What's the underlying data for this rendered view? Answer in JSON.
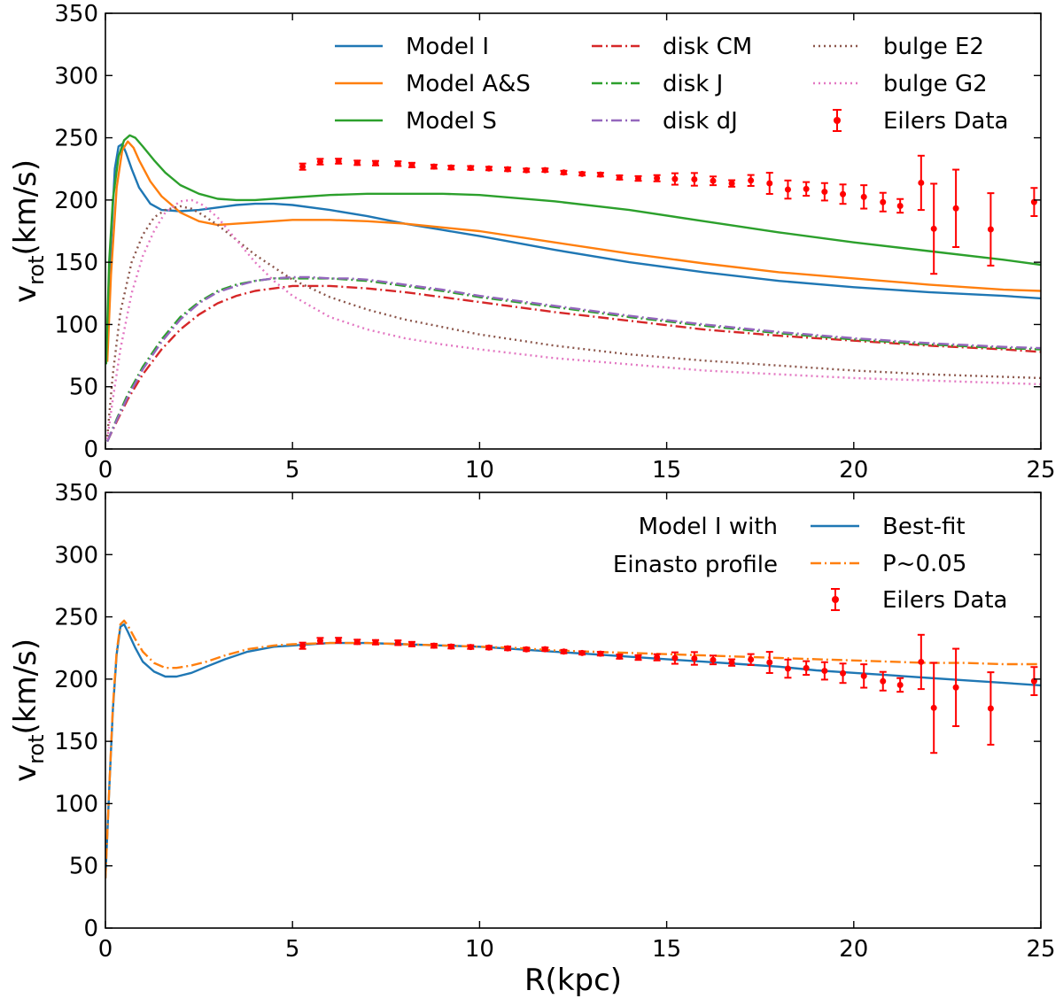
{
  "colors": {
    "blue": "#1f77b4",
    "orange": "#ff7f0e",
    "green": "#2ca02c",
    "red": "#d62728",
    "purple": "#9467bd",
    "brown": "#8c564b",
    "pink": "#e377c2",
    "data": "#ff0000"
  },
  "shared": {
    "xlabel": "R(kpc)",
    "ylabel_main": "v",
    "ylabel_sub": "rot",
    "ylabel_tail": "(km/s)",
    "xticks": [
      0,
      5,
      10,
      15,
      20,
      25
    ],
    "yticks": [
      0,
      50,
      100,
      150,
      200,
      250,
      300,
      350
    ]
  },
  "top_legend": {
    "model_i": "Model I",
    "model_as": "Model A&S",
    "model_s": "Model S",
    "disk_cm": "disk CM",
    "disk_j": "disk J",
    "disk_dj": "disk dJ",
    "bulge_e2": "bulge E2",
    "bulge_g2": "bulge G2",
    "eilers": "Eilers Data"
  },
  "bottom_legend": {
    "note_line1": "Model I with",
    "note_line2": "Einasto profile",
    "best_fit": "Best-fit",
    "p005": "P~0.05",
    "eilers": "Eilers Data"
  },
  "chart_data": [
    {
      "type": "line",
      "panel": "top",
      "title": "",
      "xlabel": "",
      "ylabel": "v_rot(km/s)",
      "xlim": [
        0,
        25
      ],
      "ylim": [
        0,
        350
      ],
      "series": [
        {
          "name": "Model I",
          "color": "blue",
          "style": "solid",
          "x": [
            0.05,
            0.15,
            0.25,
            0.35,
            0.45,
            0.55,
            0.7,
            0.9,
            1.2,
            1.5,
            2.0,
            2.5,
            3.0,
            3.5,
            4.0,
            4.5,
            5,
            6,
            7,
            8,
            9,
            10,
            12,
            14,
            16,
            18,
            20,
            22,
            24,
            25
          ],
          "y": [
            80,
            165,
            225,
            243,
            245,
            238,
            225,
            210,
            197,
            192,
            191,
            192,
            194,
            196,
            197,
            197,
            196,
            192,
            187,
            181,
            176,
            171,
            160,
            150,
            142,
            135,
            130,
            126,
            123,
            121
          ]
        },
        {
          "name": "Model A&S",
          "color": "orange",
          "style": "solid",
          "x": [
            0.05,
            0.15,
            0.3,
            0.45,
            0.6,
            0.75,
            0.9,
            1.2,
            1.5,
            2.0,
            2.5,
            3.0,
            3.5,
            4,
            5,
            6,
            7,
            8,
            9,
            10,
            12,
            14,
            16,
            18,
            20,
            22,
            24,
            25
          ],
          "y": [
            70,
            140,
            210,
            240,
            247,
            242,
            232,
            215,
            203,
            190,
            183,
            180,
            181,
            182,
            184,
            184,
            183,
            181,
            178,
            175,
            166,
            157,
            149,
            142,
            137,
            132,
            128,
            127
          ]
        },
        {
          "name": "Model S",
          "color": "green",
          "style": "solid",
          "x": [
            0.02,
            0.1,
            0.2,
            0.35,
            0.5,
            0.65,
            0.8,
            1.0,
            1.3,
            1.6,
            2.0,
            2.5,
            3.0,
            3.5,
            4,
            5,
            6,
            7,
            8,
            9,
            10,
            12,
            14,
            16,
            18,
            20,
            22,
            24,
            25
          ],
          "y": [
            68,
            150,
            200,
            235,
            248,
            252,
            250,
            243,
            232,
            222,
            212,
            205,
            201,
            200,
            200,
            202,
            204,
            205,
            205,
            205,
            204,
            199,
            192,
            183,
            174,
            166,
            159,
            152,
            148
          ]
        },
        {
          "name": "disk CM",
          "color": "red",
          "style": "dashdot",
          "x": [
            0.05,
            0.3,
            0.6,
            1.0,
            1.5,
            2.0,
            2.5,
            3.0,
            3.5,
            4,
            4.5,
            5,
            5.5,
            6,
            6.5,
            7,
            8,
            9,
            10,
            12,
            14,
            16,
            18,
            20,
            22,
            24,
            25
          ],
          "y": [
            6,
            22,
            40,
            60,
            80,
            96,
            108,
            117,
            123,
            127,
            129,
            131,
            131,
            131,
            130,
            129,
            126,
            122,
            118,
            110,
            103,
            96,
            91,
            87,
            83,
            80,
            78
          ]
        },
        {
          "name": "disk J",
          "color": "green",
          "style": "dashdot",
          "x": [
            0.05,
            0.3,
            0.6,
            1.0,
            1.5,
            2.0,
            2.5,
            3.0,
            3.5,
            4,
            4.5,
            5,
            5.5,
            6,
            6.5,
            7,
            8,
            9,
            10,
            12,
            14,
            16,
            18,
            20,
            22,
            24,
            25
          ],
          "y": [
            6,
            24,
            44,
            66,
            88,
            106,
            118,
            127,
            132,
            135,
            137,
            137,
            137,
            137,
            136,
            135,
            131,
            127,
            122,
            114,
            106,
            99,
            93,
            88,
            84,
            81,
            80
          ]
        },
        {
          "name": "disk dJ",
          "color": "purple",
          "style": "dashdot",
          "x": [
            0.05,
            0.3,
            0.6,
            1.0,
            1.5,
            2.0,
            2.5,
            3.0,
            3.5,
            4,
            4.5,
            5,
            5.5,
            6,
            6.5,
            7,
            8,
            9,
            10,
            12,
            14,
            16,
            18,
            20,
            22,
            24,
            25
          ],
          "y": [
            6,
            23,
            42,
            64,
            86,
            104,
            117,
            126,
            131,
            135,
            137,
            138,
            138,
            137,
            137,
            136,
            132,
            128,
            123,
            115,
            107,
            100,
            94,
            89,
            85,
            82,
            81
          ]
        },
        {
          "name": "bulge E2",
          "color": "brown",
          "style": "dotted",
          "x": [
            0.05,
            0.2,
            0.4,
            0.7,
            1.0,
            1.3,
            1.6,
            2.0,
            2.3,
            2.6,
            3.0,
            3.5,
            4,
            4.5,
            5,
            6,
            7,
            8,
            9,
            10,
            12,
            14,
            16,
            18,
            20,
            22,
            24,
            25
          ],
          "y": [
            10,
            60,
            110,
            150,
            172,
            186,
            192,
            195,
            193,
            188,
            180,
            168,
            156,
            146,
            136,
            122,
            112,
            104,
            98,
            92,
            83,
            76,
            71,
            67,
            63,
            60,
            58,
            57
          ]
        },
        {
          "name": "bulge G2",
          "color": "pink",
          "style": "dotted",
          "x": [
            0.05,
            0.2,
            0.4,
            0.7,
            1.0,
            1.3,
            1.6,
            2.0,
            2.3,
            2.6,
            3.0,
            3.5,
            4,
            4.5,
            5,
            6,
            7,
            8,
            9,
            10,
            12,
            14,
            16,
            18,
            20,
            22,
            24,
            25
          ],
          "y": [
            8,
            40,
            80,
            125,
            155,
            175,
            190,
            199,
            200,
            196,
            186,
            168,
            150,
            135,
            123,
            106,
            96,
            89,
            84,
            80,
            73,
            68,
            63,
            60,
            57,
            55,
            53,
            52
          ]
        }
      ],
      "errorbar_series": {
        "name": "Eilers Data",
        "color": "data",
        "x": [
          5.27,
          5.74,
          6.23,
          6.73,
          7.22,
          7.82,
          8.19,
          8.78,
          9.24,
          9.76,
          10.25,
          10.75,
          11.25,
          11.75,
          12.25,
          12.74,
          13.23,
          13.74,
          14.24,
          14.74,
          15.22,
          15.74,
          16.24,
          16.74,
          17.25,
          17.75,
          18.24,
          18.73,
          19.22,
          19.71,
          20.27,
          20.78,
          21.24,
          21.8,
          22.14,
          22.73,
          23.66,
          24.82
        ],
        "y": [
          226.8,
          230.8,
          231.2,
          229.9,
          229.6,
          229.2,
          228.1,
          226.8,
          226.1,
          225.8,
          225.3,
          224.7,
          223.9,
          224.0,
          222.1,
          221.0,
          220.4,
          218.1,
          217.3,
          217.5,
          216.9,
          216.6,
          215.4,
          213.3,
          215.7,
          213.4,
          208.4,
          208.9,
          206.6,
          204.7,
          202.5,
          198.3,
          195.3,
          213.8,
          176.9,
          193.3,
          176.4,
          198.4
        ],
        "err": [
          2.5,
          2.3,
          2.0,
          1.8,
          1.8,
          1.9,
          1.8,
          1.6,
          1.5,
          1.5,
          1.4,
          1.5,
          1.4,
          1.4,
          1.4,
          1.3,
          1.5,
          1.7,
          1.9,
          2.5,
          4.6,
          5.1,
          3.5,
          2.6,
          4.4,
          8.5,
          7.3,
          5.5,
          7.0,
          7.8,
          9.4,
          7.5,
          5.5,
          21.8,
          36.2,
          31.1,
          29.1,
          11.3
        ]
      }
    },
    {
      "type": "line",
      "panel": "bottom",
      "title": "",
      "xlabel": "R(kpc)",
      "ylabel": "v_rot(km/s)",
      "xlim": [
        0,
        25
      ],
      "ylim": [
        0,
        350
      ],
      "series": [
        {
          "name": "Best-fit",
          "color": "blue",
          "style": "solid",
          "x": [
            0.0,
            0.1,
            0.2,
            0.3,
            0.4,
            0.5,
            0.6,
            0.8,
            1.0,
            1.3,
            1.6,
            1.9,
            2.3,
            2.7,
            3.2,
            3.8,
            4.5,
            5,
            6,
            7,
            8,
            9,
            10,
            11,
            12,
            13,
            14,
            15,
            16,
            17,
            18,
            19,
            20,
            21,
            22,
            23,
            24,
            25
          ],
          "y": [
            40,
            110,
            175,
            220,
            242,
            244,
            238,
            225,
            214,
            206,
            202,
            202,
            205,
            210,
            216,
            222,
            226,
            227,
            229,
            229,
            228,
            227,
            226,
            224,
            222,
            220,
            218,
            216,
            214,
            212,
            210,
            207,
            205,
            203,
            201,
            199,
            197,
            195
          ]
        },
        {
          "name": "P~0.05",
          "color": "orange",
          "style": "dashdot",
          "x": [
            0.0,
            0.1,
            0.2,
            0.3,
            0.4,
            0.5,
            0.6,
            0.8,
            1.0,
            1.3,
            1.6,
            1.9,
            2.3,
            2.7,
            3.2,
            3.8,
            4.5,
            5,
            6,
            7,
            8,
            9,
            10,
            11,
            12,
            13,
            14,
            15,
            16,
            17,
            18,
            19,
            20,
            21,
            22,
            23,
            24,
            25
          ],
          "y": [
            40,
            110,
            178,
            222,
            244,
            247,
            243,
            232,
            222,
            213,
            209,
            209,
            211,
            214,
            219,
            224,
            227,
            228,
            229,
            229,
            228,
            227,
            226,
            225,
            223,
            222,
            221,
            220,
            219,
            218,
            217,
            216,
            215,
            214,
            213,
            213,
            212,
            212
          ]
        }
      ],
      "errorbar_series": {
        "name": "Eilers Data",
        "color": "data",
        "x": [
          5.27,
          5.74,
          6.23,
          6.73,
          7.22,
          7.82,
          8.19,
          8.78,
          9.24,
          9.76,
          10.25,
          10.75,
          11.25,
          11.75,
          12.25,
          12.74,
          13.23,
          13.74,
          14.24,
          14.74,
          15.22,
          15.74,
          16.24,
          16.74,
          17.25,
          17.75,
          18.24,
          18.73,
          19.22,
          19.71,
          20.27,
          20.78,
          21.24,
          21.8,
          22.14,
          22.73,
          23.66,
          24.82
        ],
        "y": [
          226.8,
          230.8,
          231.2,
          229.9,
          229.6,
          229.2,
          228.1,
          226.8,
          226.1,
          225.8,
          225.3,
          224.7,
          223.9,
          224.0,
          222.1,
          221.0,
          220.4,
          218.1,
          217.3,
          217.5,
          216.9,
          216.6,
          215.4,
          213.3,
          215.7,
          213.4,
          208.4,
          208.9,
          206.6,
          204.7,
          202.5,
          198.3,
          195.3,
          213.8,
          176.9,
          193.3,
          176.4,
          198.4
        ],
        "err": [
          2.5,
          2.3,
          2.0,
          1.8,
          1.8,
          1.9,
          1.8,
          1.6,
          1.5,
          1.5,
          1.4,
          1.5,
          1.4,
          1.4,
          1.4,
          1.3,
          1.5,
          1.7,
          1.9,
          2.5,
          4.6,
          5.1,
          3.5,
          2.6,
          4.4,
          8.5,
          7.3,
          5.5,
          7.0,
          7.8,
          9.4,
          7.5,
          5.5,
          21.8,
          36.2,
          31.1,
          29.1,
          11.3
        ]
      }
    }
  ]
}
